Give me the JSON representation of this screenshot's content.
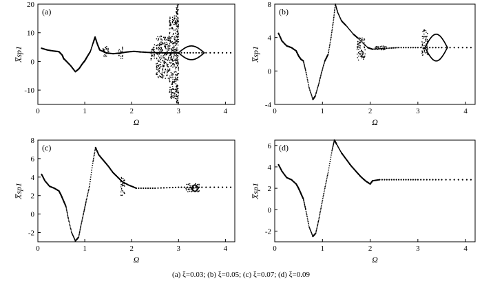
{
  "caption": "(a) ξ=0.03; (b) ξ=0.05; (c) ξ=0.07; (d) ξ=0.09",
  "chart_data": [
    {
      "panel": "(a)",
      "type": "scatter",
      "xlabel": "Ω",
      "ylabel": "X̅sp1",
      "xlim": [
        0,
        4.2
      ],
      "ylim": [
        -15,
        20
      ],
      "xticks": [
        0,
        1,
        2,
        3,
        4
      ],
      "yticks": [
        -10,
        0,
        10,
        20
      ],
      "grid": false,
      "curve": [
        [
          0.08,
          4.6
        ],
        [
          0.2,
          4.0
        ],
        [
          0.35,
          3.6
        ],
        [
          0.45,
          3.4
        ],
        [
          0.52,
          2.2
        ],
        [
          0.55,
          1.0
        ],
        [
          0.6,
          0.2
        ],
        [
          0.7,
          -1.5
        ],
        [
          0.8,
          -3.6
        ],
        [
          0.88,
          -2.5
        ],
        [
          0.95,
          -0.8
        ],
        [
          1.0,
          0.2
        ],
        [
          1.05,
          1.6
        ],
        [
          1.12,
          3.5
        ],
        [
          1.18,
          6.5
        ],
        [
          1.22,
          8.5
        ],
        [
          1.27,
          6.0
        ],
        [
          1.32,
          4.0
        ],
        [
          1.45,
          3.0
        ],
        [
          1.6,
          2.7
        ],
        [
          1.75,
          2.9
        ],
        [
          1.9,
          3.3
        ],
        [
          2.05,
          3.5
        ],
        [
          2.2,
          3.3
        ],
        [
          2.4,
          3.1
        ],
        [
          2.6,
          3.0
        ],
        [
          2.8,
          3.0
        ],
        [
          3.0,
          3.0
        ],
        [
          3.5,
          3.0
        ],
        [
          4.2,
          3.0
        ]
      ],
      "bands": [
        [
          1.38,
          1.52,
          1.2,
          5.3
        ],
        [
          1.72,
          1.82,
          1.0,
          5.0
        ],
        [
          2.4,
          2.5,
          0.5,
          6.0
        ],
        [
          2.52,
          2.8,
          -6.0,
          9.0
        ],
        [
          2.8,
          2.95,
          -13.0,
          16.0
        ],
        [
          2.95,
          3.0,
          -15.0,
          20.0
        ]
      ],
      "loops": [
        [
          3.0,
          3.55,
          3.0,
          2.4
        ]
      ]
    },
    {
      "panel": "(b)",
      "type": "scatter",
      "xlabel": "Ω",
      "ylabel": "X̅sp1",
      "xlim": [
        0,
        4.2
      ],
      "ylim": [
        -4,
        8
      ],
      "xticks": [
        0,
        1,
        2,
        3,
        4
      ],
      "yticks": [
        -4,
        0,
        4,
        8
      ],
      "grid": false,
      "curve": [
        [
          0.08,
          4.5
        ],
        [
          0.15,
          3.6
        ],
        [
          0.25,
          3.0
        ],
        [
          0.35,
          2.8
        ],
        [
          0.45,
          2.4
        ],
        [
          0.5,
          1.8
        ],
        [
          0.55,
          1.4
        ],
        [
          0.6,
          1.2
        ],
        [
          0.65,
          0.0
        ],
        [
          0.72,
          -2.0
        ],
        [
          0.8,
          -3.4
        ],
        [
          0.85,
          -3.0
        ],
        [
          0.92,
          -1.6
        ],
        [
          0.98,
          -0.2
        ],
        [
          1.05,
          1.2
        ],
        [
          1.12,
          2.0
        ],
        [
          1.18,
          4.0
        ],
        [
          1.23,
          6.0
        ],
        [
          1.27,
          8.0
        ],
        [
          1.32,
          7.0
        ],
        [
          1.4,
          6.0
        ],
        [
          1.5,
          5.4
        ],
        [
          1.65,
          4.4
        ],
        [
          1.75,
          3.9
        ],
        [
          1.95,
          2.8
        ],
        [
          2.05,
          2.6
        ],
        [
          2.3,
          2.7
        ],
        [
          2.6,
          2.8
        ],
        [
          3.0,
          2.8
        ],
        [
          3.5,
          2.8
        ],
        [
          4.2,
          2.8
        ]
      ],
      "bands": [
        [
          1.72,
          1.9,
          1.3,
          4.0
        ],
        [
          2.1,
          2.35,
          2.5,
          3.0
        ],
        [
          3.08,
          3.22,
          1.8,
          5.0
        ]
      ],
      "loops": [
        [
          3.15,
          3.62,
          2.8,
          1.6
        ]
      ]
    },
    {
      "panel": "(c)",
      "type": "scatter",
      "xlabel": "Ω",
      "ylabel": "X̅sp1",
      "xlim": [
        0,
        4.2
      ],
      "ylim": [
        -3,
        8
      ],
      "xticks": [
        0,
        1,
        2,
        3,
        4
      ],
      "yticks": [
        -2,
        0,
        2,
        4,
        6,
        8
      ],
      "grid": false,
      "curve": [
        [
          0.08,
          4.3
        ],
        [
          0.15,
          3.6
        ],
        [
          0.25,
          3.0
        ],
        [
          0.35,
          2.8
        ],
        [
          0.45,
          2.5
        ],
        [
          0.5,
          2.0
        ],
        [
          0.55,
          1.4
        ],
        [
          0.6,
          0.8
        ],
        [
          0.65,
          -0.5
        ],
        [
          0.72,
          -2.0
        ],
        [
          0.8,
          -2.9
        ],
        [
          0.87,
          -2.5
        ],
        [
          0.92,
          -1.2
        ],
        [
          0.98,
          0.2
        ],
        [
          1.03,
          1.4
        ],
        [
          1.1,
          3.0
        ],
        [
          1.17,
          5.5
        ],
        [
          1.23,
          7.2
        ],
        [
          1.3,
          6.4
        ],
        [
          1.4,
          5.8
        ],
        [
          1.5,
          5.2
        ],
        [
          1.6,
          4.5
        ],
        [
          1.7,
          4.0
        ],
        [
          1.8,
          3.5
        ],
        [
          1.95,
          3.1
        ],
        [
          2.1,
          2.8
        ],
        [
          2.5,
          2.8
        ],
        [
          3.0,
          2.9
        ],
        [
          3.5,
          2.9
        ],
        [
          4.2,
          2.9
        ]
      ],
      "bands": [
        [
          1.76,
          1.86,
          2.0,
          4.0
        ],
        [
          3.15,
          3.45,
          2.4,
          3.3
        ]
      ],
      "loops": [
        [
          3.28,
          3.42,
          2.8,
          0.35
        ]
      ]
    },
    {
      "panel": "(d)",
      "type": "scatter",
      "xlabel": "Ω",
      "ylabel": "X̅sp1",
      "xlim": [
        0,
        4.2
      ],
      "ylim": [
        -3,
        6.5
      ],
      "xticks": [
        0,
        1,
        2,
        3,
        4
      ],
      "yticks": [
        -2,
        0,
        2,
        4,
        6
      ],
      "grid": false,
      "curve": [
        [
          0.08,
          4.2
        ],
        [
          0.15,
          3.6
        ],
        [
          0.25,
          3.0
        ],
        [
          0.35,
          2.8
        ],
        [
          0.45,
          2.4
        ],
        [
          0.5,
          2.0
        ],
        [
          0.55,
          1.5
        ],
        [
          0.6,
          1.0
        ],
        [
          0.65,
          0.0
        ],
        [
          0.72,
          -1.6
        ],
        [
          0.8,
          -2.5
        ],
        [
          0.86,
          -2.2
        ],
        [
          0.92,
          -1.0
        ],
        [
          0.98,
          0.4
        ],
        [
          1.05,
          2.0
        ],
        [
          1.12,
          3.5
        ],
        [
          1.2,
          5.5
        ],
        [
          1.25,
          6.5
        ],
        [
          1.3,
          6.1
        ],
        [
          1.4,
          5.3
        ],
        [
          1.5,
          4.7
        ],
        [
          1.6,
          4.1
        ],
        [
          1.7,
          3.6
        ],
        [
          1.8,
          3.1
        ],
        [
          1.9,
          2.7
        ],
        [
          2.0,
          2.4
        ],
        [
          2.05,
          2.7
        ],
        [
          2.2,
          2.8
        ],
        [
          2.6,
          2.8
        ],
        [
          3.0,
          2.8
        ],
        [
          3.5,
          2.8
        ],
        [
          4.2,
          2.8
        ]
      ],
      "bands": [],
      "loops": []
    }
  ]
}
